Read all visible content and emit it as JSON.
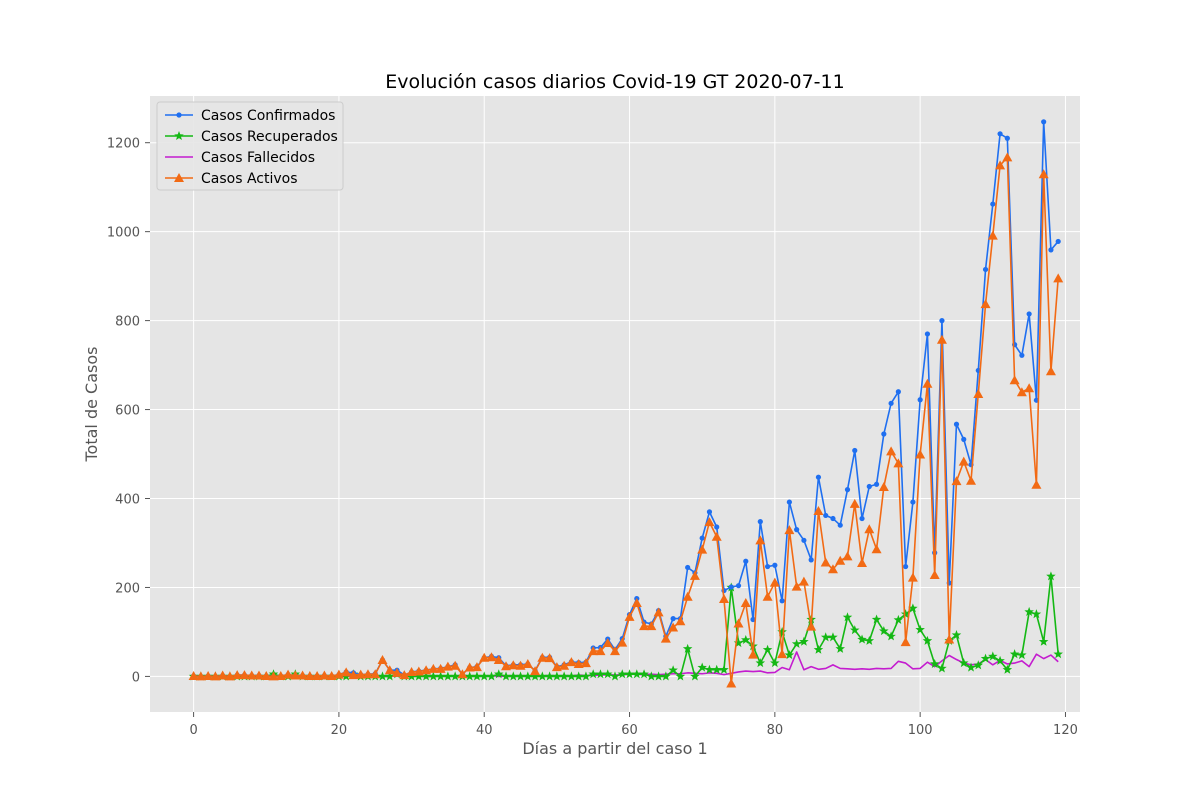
{
  "chart_data": {
    "type": "line",
    "title": "Evolución casos diarios Covid-19 GT 2020-07-11",
    "xlabel": "Días a partir del caso 1",
    "ylabel": "Total de Casos",
    "xlim": [
      -6,
      122
    ],
    "ylim": [
      -80,
      1305
    ],
    "xticks": [
      0,
      20,
      40,
      60,
      80,
      100,
      120
    ],
    "yticks": [
      0,
      200,
      400,
      600,
      800,
      1000,
      1200
    ],
    "grid": true,
    "legend_position": "top-left",
    "colors": {
      "background": "#e5e5e5",
      "grid": "#ffffff",
      "confirmados": "#1f6ff0",
      "recuperados": "#14b814",
      "fallecidos": "#c41ccf",
      "activos": "#f26a14"
    },
    "series": [
      {
        "name": "Casos Confirmados",
        "key": "confirmados",
        "marker": "circle",
        "values": [
          1,
          0,
          1,
          0,
          2,
          0,
          3,
          3,
          2,
          2,
          1,
          0,
          1,
          4,
          2,
          2,
          1,
          1,
          2,
          1,
          4,
          10,
          8,
          4,
          5,
          6,
          37,
          14,
          14,
          3,
          10,
          12,
          14,
          17,
          18,
          22,
          26,
          5,
          20,
          22,
          42,
          45,
          42,
          24,
          26,
          26,
          28,
          13,
          43,
          43,
          22,
          26,
          33,
          31,
          32,
          64,
          65,
          84,
          60,
          85,
          139,
          175,
          122,
          118,
          148,
          90,
          130,
          130,
          245,
          233,
          311,
          370,
          336,
          193,
          201,
          204,
          259,
          128,
          348,
          247,
          250,
          170,
          392,
          330,
          306,
          262,
          448,
          362,
          355,
          340,
          420,
          508,
          355,
          427,
          432,
          545,
          614,
          640,
          247,
          392,
          622,
          770,
          278,
          800,
          210,
          567,
          533,
          476,
          688,
          915,
          1062,
          1220,
          1210,
          746,
          722,
          815,
          621,
          1247,
          959,
          978
        ]
      },
      {
        "name": "Casos Recuperados",
        "key": "recuperados",
        "marker": "star",
        "values": [
          0,
          0,
          0,
          0,
          0,
          0,
          0,
          0,
          0,
          0,
          0,
          5,
          0,
          0,
          5,
          0,
          0,
          0,
          0,
          0,
          0,
          0,
          5,
          0,
          0,
          0,
          0,
          0,
          5,
          0,
          0,
          0,
          0,
          0,
          0,
          0,
          0,
          0,
          0,
          0,
          0,
          0,
          5,
          0,
          0,
          0,
          0,
          0,
          0,
          0,
          0,
          0,
          0,
          0,
          0,
          5,
          5,
          5,
          0,
          5,
          5,
          5,
          5,
          0,
          0,
          0,
          14,
          0,
          62,
          0,
          20,
          15,
          15,
          15,
          200,
          75,
          82,
          68,
          30,
          60,
          30,
          100,
          48,
          73,
          78,
          128,
          60,
          88,
          88,
          62,
          133,
          104,
          83,
          80,
          128,
          102,
          90,
          127,
          140,
          153,
          105,
          80,
          28,
          18,
          80,
          93,
          30,
          20,
          25,
          40,
          45,
          35,
          15,
          50,
          48,
          145,
          140,
          78,
          225,
          50
        ]
      },
      {
        "name": "Casos Fallecidos",
        "key": "fallecidos",
        "marker": "none",
        "values": [
          0,
          0,
          0,
          0,
          0,
          0,
          0,
          0,
          0,
          0,
          0,
          0,
          0,
          0,
          0,
          0,
          0,
          0,
          0,
          0,
          0,
          1,
          0,
          0,
          0,
          1,
          0,
          0,
          1,
          0,
          0,
          1,
          0,
          0,
          1,
          0,
          2,
          0,
          0,
          1,
          0,
          2,
          0,
          1,
          1,
          2,
          0,
          1,
          1,
          2,
          1,
          2,
          1,
          3,
          2,
          2,
          3,
          4,
          3,
          4,
          5,
          5,
          4,
          5,
          4,
          5,
          6,
          6,
          8,
          7,
          6,
          8,
          7,
          4,
          7,
          10,
          12,
          11,
          12,
          8,
          9,
          20,
          15,
          55,
          15,
          22,
          16,
          18,
          26,
          18,
          17,
          16,
          17,
          16,
          18,
          17,
          18,
          34,
          30,
          17,
          18,
          32,
          22,
          35,
          47,
          38,
          30,
          26,
          28,
          38,
          26,
          36,
          28,
          30,
          35,
          22,
          50,
          40,
          48,
          33
        ]
      },
      {
        "name": "Casos Activos",
        "key": "activos",
        "marker": "triangle",
        "values": [
          1,
          0,
          1,
          0,
          2,
          0,
          3,
          3,
          2,
          2,
          1,
          0,
          1,
          4,
          2,
          2,
          1,
          1,
          2,
          1,
          4,
          9,
          3,
          4,
          5,
          5,
          37,
          14,
          8,
          3,
          10,
          11,
          14,
          17,
          17,
          22,
          24,
          5,
          20,
          21,
          42,
          43,
          37,
          23,
          25,
          24,
          28,
          12,
          42,
          41,
          21,
          24,
          32,
          28,
          30,
          57,
          57,
          75,
          57,
          76,
          134,
          165,
          113,
          113,
          144,
          85,
          110,
          124,
          179,
          226,
          285,
          347,
          314,
          174,
          -16,
          119,
          165,
          49,
          306,
          179,
          211,
          50,
          329,
          202,
          213,
          112,
          372,
          256,
          241,
          260,
          270,
          388,
          255,
          331,
          286,
          426,
          506,
          479,
          77,
          222,
          499,
          658,
          228,
          757,
          83,
          439,
          483,
          440,
          635,
          837,
          991,
          1149,
          1167,
          666,
          639,
          648,
          431,
          1129,
          686,
          895
        ]
      }
    ]
  }
}
